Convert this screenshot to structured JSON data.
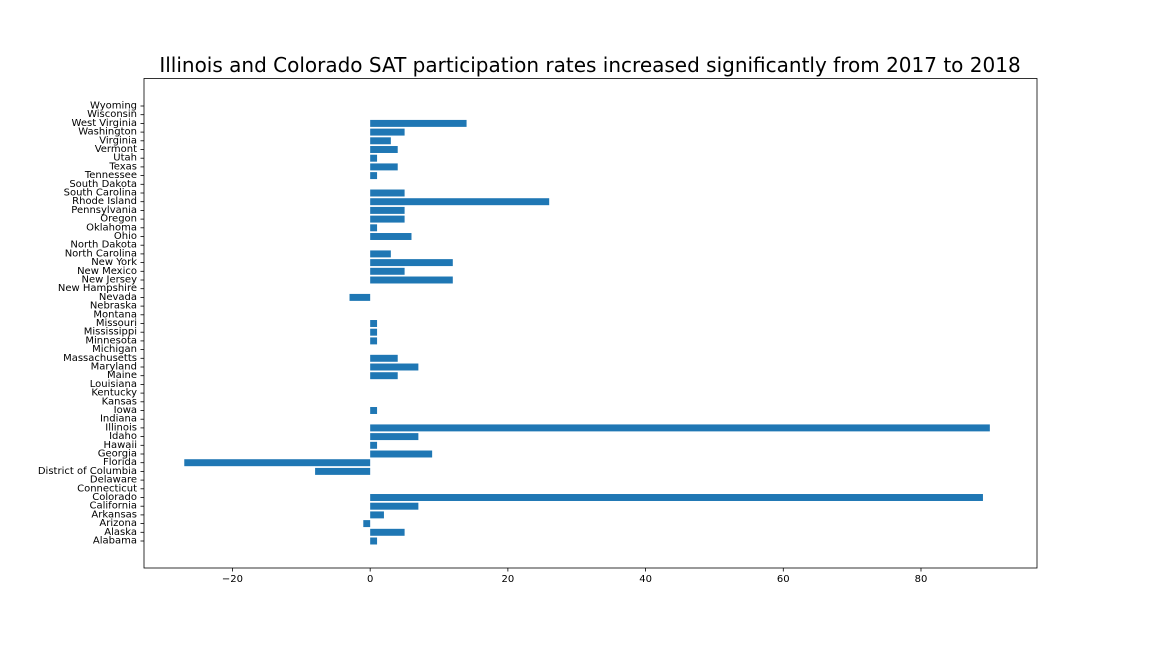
{
  "chart_data": {
    "type": "bar",
    "orientation": "horizontal",
    "title": "Illinois and Colorado SAT participation rates increased significantly from 2017 to 2018",
    "xlabel": "",
    "ylabel": "",
    "xlim": [
      -32.85,
      96.85
    ],
    "x_ticks": [
      -20,
      0,
      20,
      40,
      60,
      80
    ],
    "x_tick_labels": [
      "−20",
      "0",
      "20",
      "40",
      "60",
      "80"
    ],
    "grid": false,
    "bar_color": "#1f77b4",
    "categories": [
      "Alabama",
      "Alaska",
      "Arizona",
      "Arkansas",
      "California",
      "Colorado",
      "Connecticut",
      "Delaware",
      "District of Columbia",
      "Florida",
      "Georgia",
      "Hawaii",
      "Idaho",
      "Illinois",
      "Indiana",
      "Iowa",
      "Kansas",
      "Kentucky",
      "Louisiana",
      "Maine",
      "Maryland",
      "Massachusetts",
      "Michigan",
      "Minnesota",
      "Mississippi",
      "Missouri",
      "Montana",
      "Nebraska",
      "Nevada",
      "New Hampshire",
      "New Jersey",
      "New Mexico",
      "New York",
      "North Carolina",
      "North Dakota",
      "Ohio",
      "Oklahoma",
      "Oregon",
      "Pennsylvania",
      "Rhode Island",
      "South Carolina",
      "South Dakota",
      "Tennessee",
      "Texas",
      "Utah",
      "Vermont",
      "Virginia",
      "Washington",
      "West Virginia",
      "Wisconsin",
      "Wyoming"
    ],
    "values": [
      1,
      5,
      -1,
      2,
      7,
      89,
      0,
      0,
      -8,
      -27,
      9,
      1,
      7,
      90,
      0,
      1,
      0,
      0,
      0,
      4,
      7,
      4,
      0,
      1,
      1,
      1,
      0,
      0,
      -3,
      0,
      12,
      5,
      12,
      3,
      0,
      6,
      1,
      5,
      5,
      26,
      5,
      0,
      1,
      4,
      1,
      4,
      3,
      5,
      14,
      0,
      0
    ]
  }
}
